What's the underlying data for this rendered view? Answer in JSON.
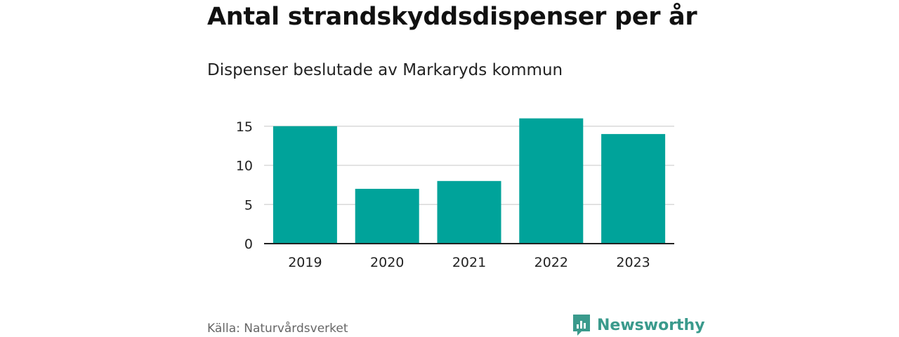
{
  "title": "Antal strandskyddsdispenser per år",
  "subtitle": "Dispenser beslutade av Markaryds kommun",
  "source": "Källa: Naturvårdsverket",
  "brand": {
    "name": "Newsworthy",
    "icon": "newsworthy-logo-icon",
    "color": "#3a9a8c"
  },
  "colors": {
    "bar": "#00a39a",
    "grid": "#d9d9d9",
    "axis": "#222222"
  },
  "chart_data": {
    "type": "bar",
    "categories": [
      "2019",
      "2020",
      "2021",
      "2022",
      "2023"
    ],
    "values": [
      15,
      7,
      8,
      16,
      14
    ],
    "yticks": [
      0,
      5,
      10,
      15
    ],
    "ylim": [
      0,
      17
    ],
    "grid": true
  }
}
